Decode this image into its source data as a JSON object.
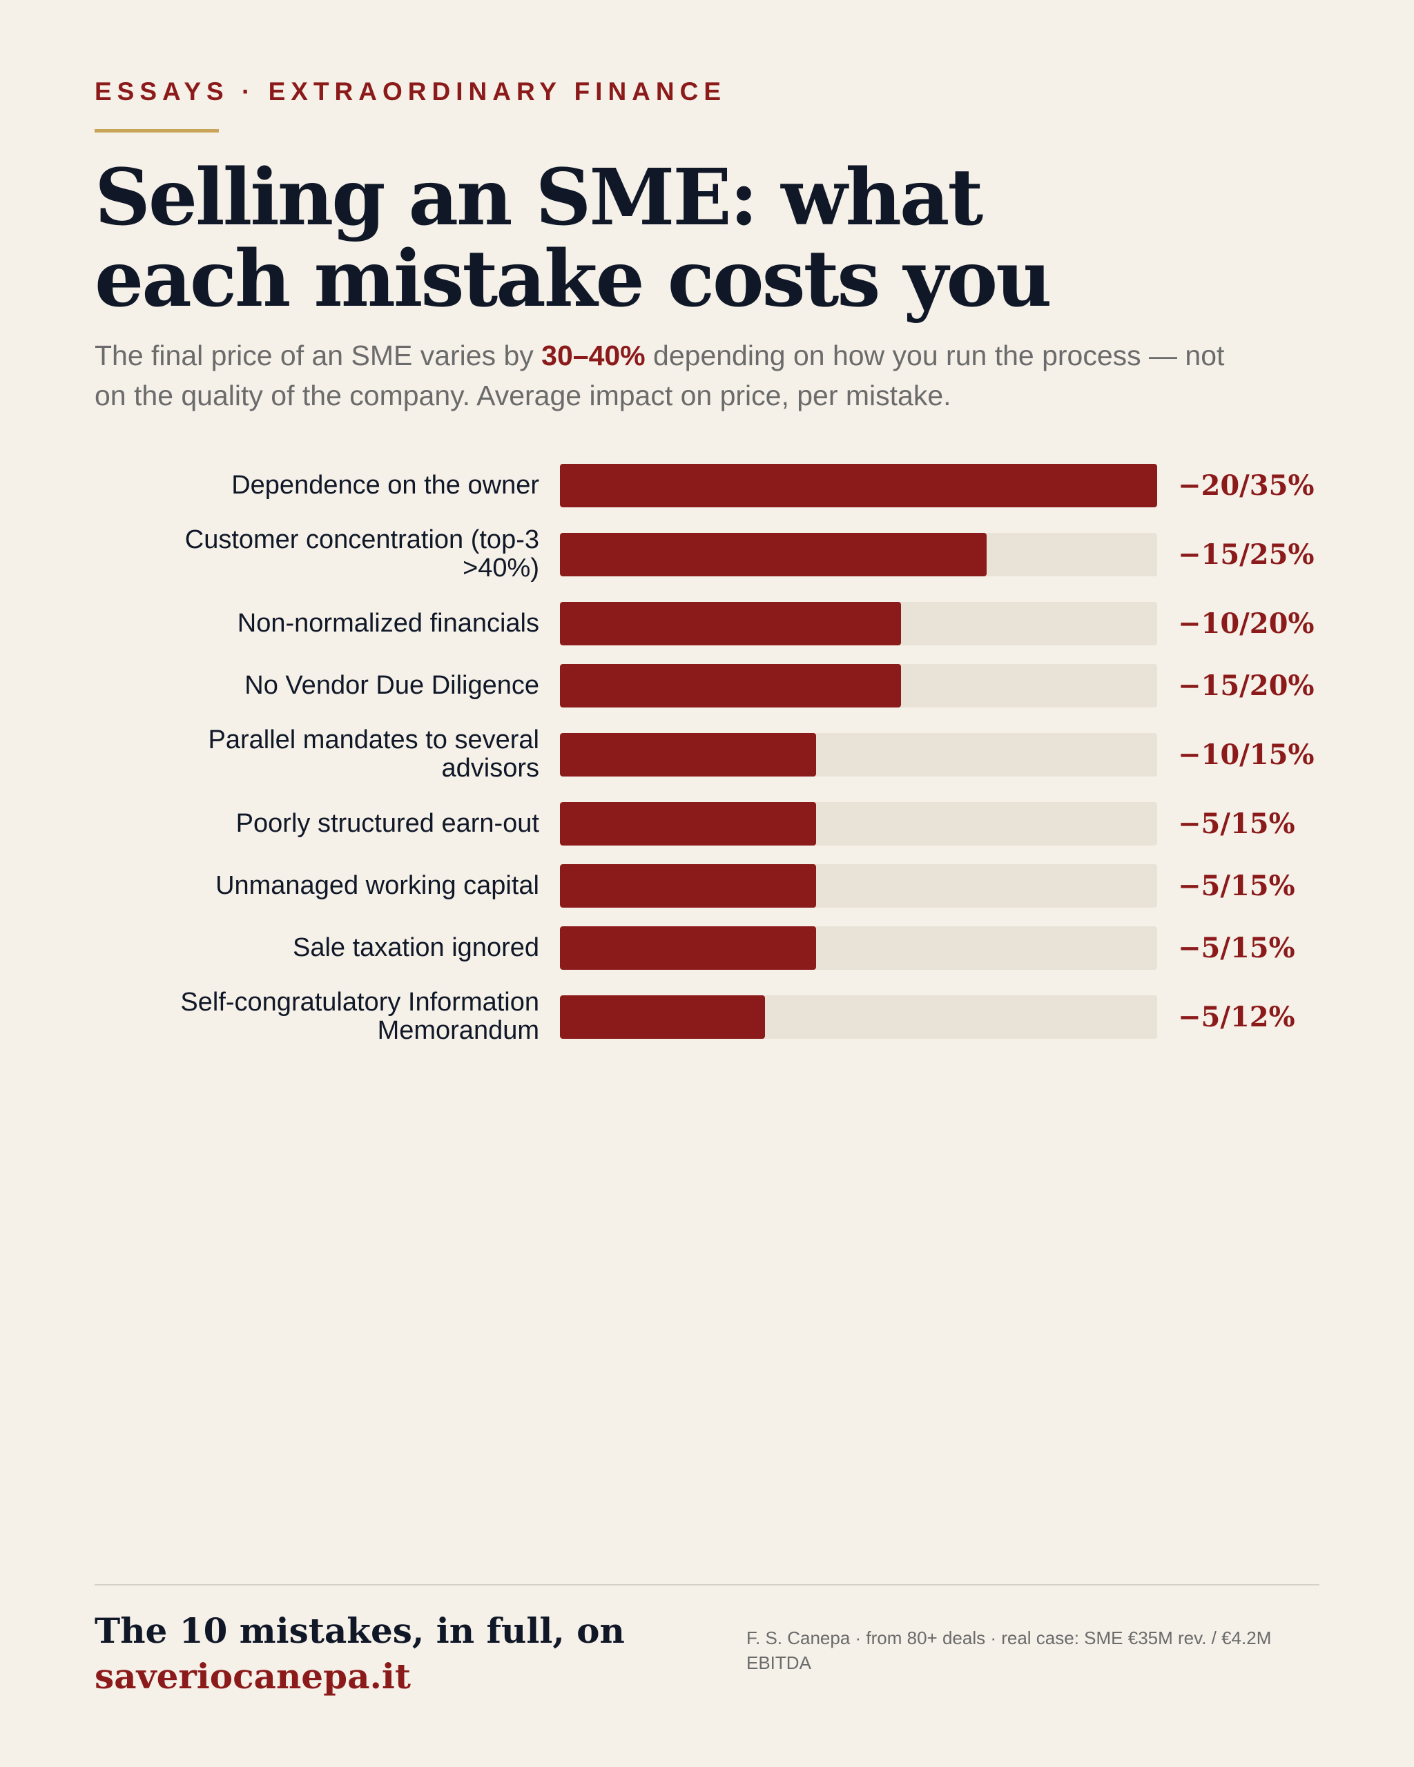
{
  "header": {
    "kicker": "ESSAYS · EXTRAORDINARY FINANCE",
    "title_line1": "Selling an SME: what",
    "title_line2": "each mistake costs you",
    "subtitle_before": "The final price of an SME varies by ",
    "subtitle_highlight": "30–40%",
    "subtitle_after": " depending on how you run the process — not on the quality of the company. Average impact on price, per mistake."
  },
  "chart_data": {
    "type": "bar",
    "orientation": "horizontal",
    "categories": [
      "Dependence on the owner",
      "Customer concentration (top-3 >40%)",
      "Non-normalized financials",
      "No Vendor Due Diligence",
      "Parallel mandates to several advisors",
      "Poorly structured earn-out",
      "Unmanaged working capital",
      "Sale taxation ignored",
      "Self-congratulatory Information Memorandum"
    ],
    "value_labels": [
      "−20/35%",
      "−15/25%",
      "−10/20%",
      "−15/20%",
      "−10/15%",
      "−5/15%",
      "−5/15%",
      "−5/15%",
      "−5/12%"
    ],
    "ranges": [
      [
        20,
        35
      ],
      [
        15,
        25
      ],
      [
        10,
        20
      ],
      [
        15,
        20
      ],
      [
        10,
        15
      ],
      [
        5,
        15
      ],
      [
        5,
        15
      ],
      [
        5,
        15
      ],
      [
        5,
        12
      ]
    ],
    "values": [
      35,
      25,
      20,
      20,
      15,
      15,
      15,
      15,
      12
    ],
    "xlim": [
      0,
      35
    ],
    "grid": false,
    "colors": {
      "fill": "#8b1a1a",
      "track": "#e9e2d7"
    }
  },
  "footer": {
    "cta_text": "The 10 mistakes, in full, on",
    "cta_link": "saveriocanepa.it",
    "note": "F. S. Canepa · from 80+ deals · real case: SME €35M rev. / €4.2M EBITDA"
  },
  "colors": {
    "background": "#f5f0e8",
    "accent": "#8b1a1a",
    "gold_rule": "#c9a55a",
    "ink": "#101828",
    "muted": "#6b6b6b"
  }
}
